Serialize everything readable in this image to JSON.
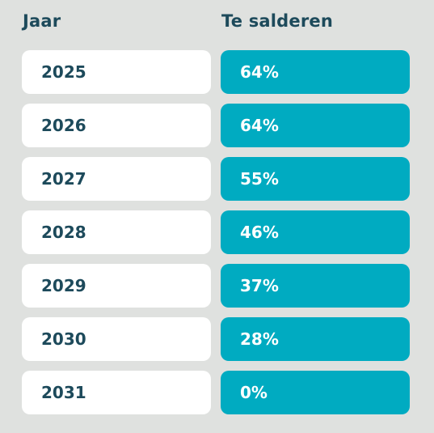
{
  "headers": {
    "year": "Jaar",
    "net": "Te salderen"
  },
  "rows": [
    {
      "year": "2025",
      "percent": "64%"
    },
    {
      "year": "2026",
      "percent": "64%"
    },
    {
      "year": "2027",
      "percent": "55%"
    },
    {
      "year": "2028",
      "percent": "46%"
    },
    {
      "year": "2029",
      "percent": "37%"
    },
    {
      "year": "2030",
      "percent": "28%"
    },
    {
      "year": "2031",
      "percent": "0%"
    }
  ],
  "colors": {
    "background": "#dfe1df",
    "heading": "#1d4a5b",
    "year_cell": "#ffffff",
    "percent_cell": "#00abc1",
    "percent_text": "#ffffff"
  }
}
